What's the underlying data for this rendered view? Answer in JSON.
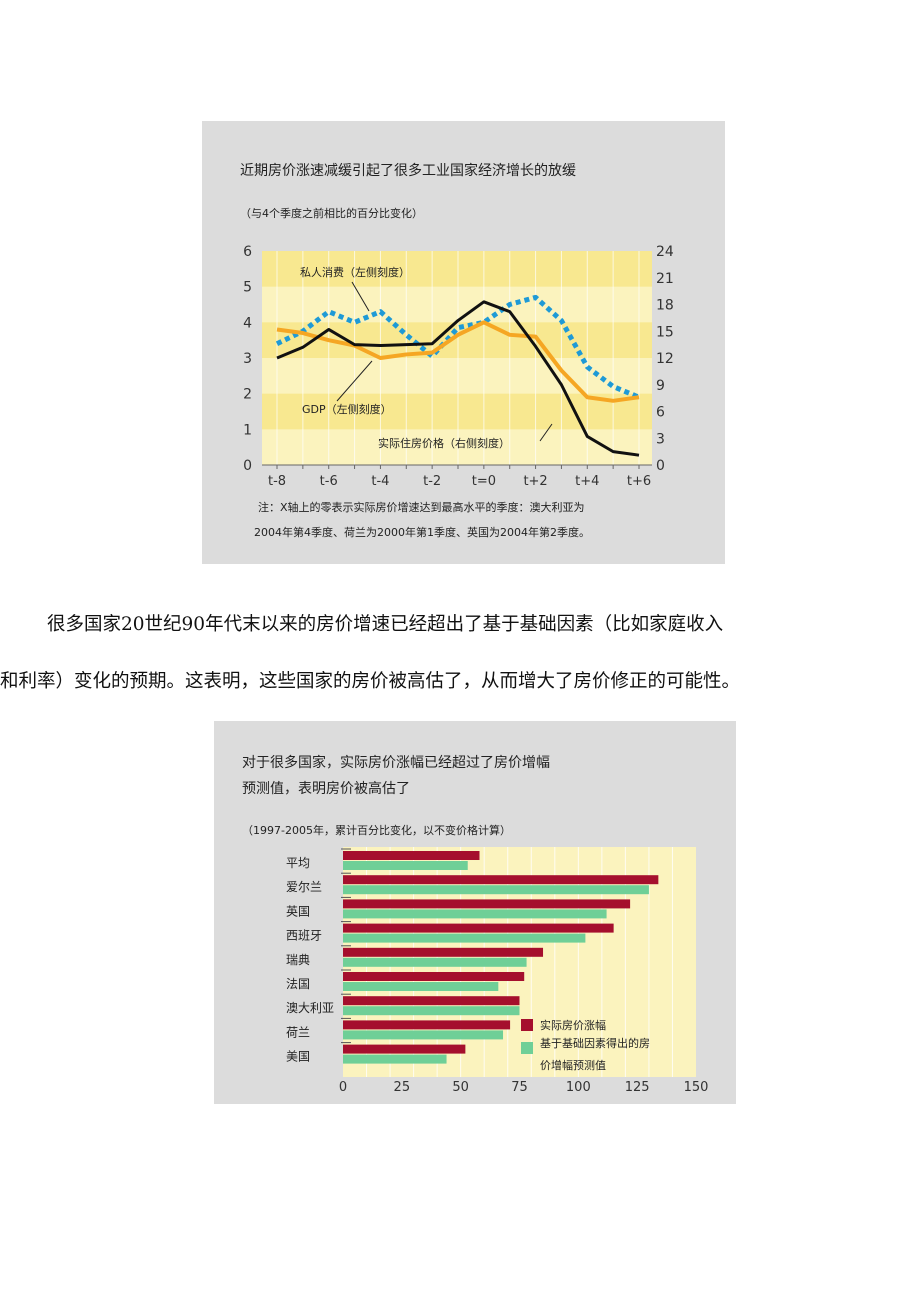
{
  "figure1": {
    "title": "近期房价涨速减缓引起了很多工业国家经济增长的放缓",
    "subtitle": "（与4个季度之前相比的百分比变化）",
    "note_line1": "注：X轴上的零表示实际房价增速达到最高水平的季度：澳大利亚为",
    "note_line2": "2004年第4季度、荷兰为2000年第1季度、英国为2004年第2季度。",
    "chart_data": {
      "type": "line",
      "x": [
        "t-8",
        "t-7",
        "t-6",
        "t-5",
        "t-4",
        "t-3",
        "t-2",
        "t-1",
        "t=0",
        "t+1",
        "t+2",
        "t+3",
        "t+4",
        "t+5",
        "t+6"
      ],
      "x_tick_labels": [
        "t-8",
        "t-6",
        "t-4",
        "t-2",
        "t=0",
        "t+2",
        "t+4",
        "t+6"
      ],
      "left_ylim": [
        0,
        6
      ],
      "left_ticks": [
        "0",
        "1",
        "2",
        "3",
        "4",
        "5",
        "6"
      ],
      "right_ylim": [
        0,
        24
      ],
      "right_ticks": [
        "0",
        "3",
        "6",
        "9",
        "12",
        "15",
        "18",
        "21",
        "24"
      ],
      "series": [
        {
          "name": "私人消费（左侧刻度）",
          "axis": "left",
          "color": "#1e9ad6",
          "style": "dotted",
          "values": [
            3.4,
            3.75,
            4.3,
            4.0,
            4.3,
            3.65,
            3.05,
            3.85,
            4.0,
            4.5,
            4.7,
            4.05,
            2.75,
            2.2,
            1.9
          ]
        },
        {
          "name": "GDP（左侧刻度）",
          "axis": "left",
          "color": "#f5a623",
          "style": "solid",
          "values": [
            3.8,
            3.7,
            3.5,
            3.35,
            3.0,
            3.1,
            3.15,
            3.65,
            4.0,
            3.65,
            3.6,
            2.65,
            1.9,
            1.8,
            1.9
          ]
        },
        {
          "name": "实际住房价格（右侧刻度）",
          "axis": "right",
          "color": "#111111",
          "style": "solid",
          "values": [
            12.0,
            13.2,
            15.2,
            13.5,
            13.4,
            13.5,
            13.6,
            16.2,
            18.3,
            17.2,
            13.3,
            9.0,
            3.2,
            1.5,
            1.1
          ]
        }
      ],
      "annotations": [
        "私人消费（左侧刻度）",
        "GDP（左侧刻度）",
        "实际住房价格（右侧刻度）"
      ],
      "colors": {
        "plot_bg": "#fbf3be",
        "band": "#f8e890",
        "figure_bg": "#dcdcdc"
      }
    }
  },
  "paragraph": {
    "line1": "很多国家20世纪90年代末以来的房价增速已经超出了基于基础因素（比如家庭收入",
    "line2": "和利率）变化的预期。这表明，这些国家的房价被高估了，从而增大了房价修正的可能性。"
  },
  "figure2": {
    "title_line1": "对于很多国家，实际房价涨幅已经超过了房价增幅",
    "title_line2": "预测值，表明房价被高估了",
    "subtitle": "（1997-2005年，累计百分比变化，以不变价格计算）",
    "chart_data": {
      "type": "bar",
      "orientation": "horizontal",
      "categories": [
        "平均",
        "爱尔兰",
        "英国",
        "西班牙",
        "瑞典",
        "法国",
        "澳大利亚",
        "荷兰",
        "美国"
      ],
      "xlim": [
        0,
        150
      ],
      "x_ticks": [
        "0",
        "25",
        "50",
        "75",
        "100",
        "125",
        "150"
      ],
      "series": [
        {
          "name": "实际房价涨幅",
          "color": "#a50f2d",
          "values": [
            58,
            134,
            122,
            115,
            85,
            77,
            75,
            71,
            52
          ]
        },
        {
          "name": "基于基础因素得出的房价增幅预测值",
          "color": "#6fcf97",
          "values": [
            53,
            130,
            112,
            103,
            78,
            66,
            75,
            68,
            44
          ]
        }
      ],
      "legend": {
        "position": "bottom-right",
        "label1": "实际房价涨幅",
        "label2_line1": "基于基础因素得出的房",
        "label2_line2": "价增幅预测值"
      },
      "colors": {
        "plot_bg": "#fbf3be",
        "figure_bg": "#dcdcdc"
      }
    }
  }
}
